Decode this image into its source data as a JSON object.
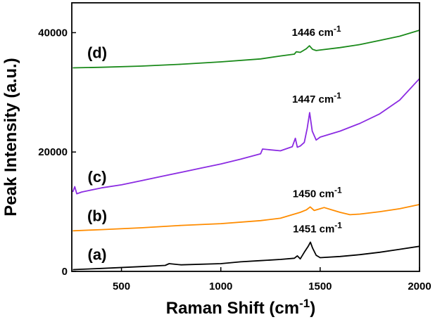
{
  "chart_data": {
    "type": "line",
    "xlabel": "Raman Shift (cm-1)",
    "ylabel": "Peak Intensity (a.u.)",
    "xlim": [
      250,
      2000
    ],
    "ylim": [
      0,
      45000
    ],
    "xticks": [
      500,
      1000,
      1500,
      2000
    ],
    "yticks": [
      0,
      20000,
      40000
    ],
    "series": [
      {
        "name": "(a)",
        "color": "#000000",
        "peak_label": "1451 cm-1",
        "x": [
          255,
          400,
          600,
          720,
          740,
          800,
          1000,
          1100,
          1200,
          1300,
          1370,
          1385,
          1400,
          1420,
          1440,
          1451,
          1462,
          1480,
          1500,
          1600,
          1700,
          1800,
          1900,
          2000
        ],
        "y": [
          300,
          500,
          800,
          1000,
          1300,
          1100,
          1300,
          1600,
          1800,
          2000,
          2200,
          2600,
          2100,
          3200,
          4200,
          4900,
          3900,
          2700,
          2300,
          2500,
          2800,
          3200,
          3700,
          4200
        ]
      },
      {
        "name": "(b)",
        "color": "#ff8c00",
        "peak_label": "1450 cm-1",
        "x": [
          255,
          400,
          600,
          800,
          1000,
          1200,
          1300,
          1400,
          1430,
          1450,
          1470,
          1500,
          1520,
          1560,
          1600,
          1650,
          1700,
          1800,
          1900,
          2000
        ],
        "y": [
          6800,
          7000,
          7300,
          7700,
          8000,
          8500,
          8900,
          9900,
          10300,
          10800,
          10200,
          10500,
          10700,
          10300,
          9900,
          9500,
          9600,
          10000,
          10500,
          11200
        ]
      },
      {
        "name": "(c)",
        "color": "#8b2be2",
        "peak_label": "1447 cm-1",
        "x": [
          255,
          265,
          275,
          300,
          400,
          500,
          600,
          700,
          800,
          900,
          1000,
          1100,
          1200,
          1210,
          1300,
          1360,
          1375,
          1385,
          1400,
          1420,
          1435,
          1447,
          1460,
          1480,
          1500,
          1600,
          1700,
          1800,
          1900,
          2000
        ],
        "y": [
          13300,
          14200,
          13000,
          13300,
          14000,
          14500,
          15200,
          15900,
          16600,
          17300,
          18000,
          18800,
          19700,
          20500,
          20200,
          20900,
          22300,
          20800,
          21000,
          21600,
          24000,
          26600,
          23500,
          22000,
          22500,
          23500,
          24800,
          26400,
          28700,
          32300
        ]
      },
      {
        "name": "(d)",
        "color": "#1a8a1a",
        "peak_label": "1446 cm-1",
        "x": [
          255,
          400,
          600,
          800,
          1000,
          1200,
          1300,
          1370,
          1380,
          1400,
          1430,
          1446,
          1462,
          1480,
          1500,
          1600,
          1700,
          1800,
          1900,
          2000
        ],
        "y": [
          34100,
          34200,
          34400,
          34700,
          35100,
          35600,
          36100,
          36400,
          36800,
          36700,
          37300,
          37800,
          37200,
          37000,
          37100,
          37500,
          38000,
          38700,
          39400,
          40400
        ]
      }
    ]
  }
}
